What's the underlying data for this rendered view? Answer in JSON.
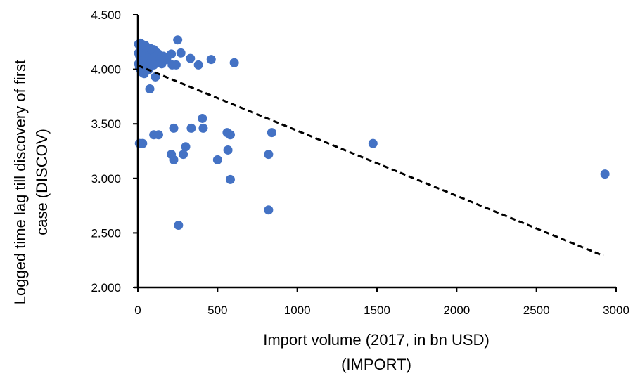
{
  "chart_data": {
    "type": "scatter",
    "title": "",
    "xlabel": [
      "Import volume (2017, in bn USD)",
      "(IMPORT)"
    ],
    "ylabel": [
      "Logged time lag till discovery of first",
      "case (DISCOV)"
    ],
    "xlim": [
      0,
      3000
    ],
    "ylim": [
      2.0,
      4.5
    ],
    "x_ticks": [
      0,
      500,
      1000,
      1500,
      2000,
      2500,
      3000
    ],
    "x_tick_labels": [
      "0",
      "500",
      "1000",
      "1500",
      "2000",
      "2500",
      "3000"
    ],
    "y_ticks": [
      2.0,
      2.5,
      3.0,
      3.5,
      4.0,
      4.5
    ],
    "y_tick_labels": [
      "2.000",
      "2.500",
      "3.000",
      "3.500",
      "4.000",
      "4.500"
    ],
    "grid": false,
    "legend": "none",
    "colors": {
      "points": "#4472C4",
      "trendline": "#000000",
      "axes": "#000000"
    },
    "trendline": {
      "style": "dashed",
      "x": [
        0,
        2920
      ],
      "y": [
        4.035,
        2.29
      ]
    },
    "points": [
      [
        5,
        4.23
      ],
      [
        10,
        4.22
      ],
      [
        15,
        4.24
      ],
      [
        20,
        4.2
      ],
      [
        25,
        4.23
      ],
      [
        30,
        4.22
      ],
      [
        35,
        4.21
      ],
      [
        40,
        4.19
      ],
      [
        45,
        4.22
      ],
      [
        50,
        4.21
      ],
      [
        55,
        4.2
      ],
      [
        60,
        4.17
      ],
      [
        70,
        4.18
      ],
      [
        80,
        4.19
      ],
      [
        90,
        4.17
      ],
      [
        100,
        4.18
      ],
      [
        110,
        4.16
      ],
      [
        120,
        4.15
      ],
      [
        130,
        4.14
      ],
      [
        5,
        4.15
      ],
      [
        10,
        4.13
      ],
      [
        15,
        4.11
      ],
      [
        20,
        4.1
      ],
      [
        25,
        4.12
      ],
      [
        30,
        4.08
      ],
      [
        35,
        4.06
      ],
      [
        40,
        4.05
      ],
      [
        45,
        4.09
      ],
      [
        50,
        4.07
      ],
      [
        55,
        4.11
      ],
      [
        60,
        4.1
      ],
      [
        65,
        4.08
      ],
      [
        75,
        4.05
      ],
      [
        85,
        4.07
      ],
      [
        95,
        4.1
      ],
      [
        105,
        4.05
      ],
      [
        115,
        4.12
      ],
      [
        140,
        4.1
      ],
      [
        150,
        4.05
      ],
      [
        160,
        4.12
      ],
      [
        170,
        4.1
      ],
      [
        180,
        4.09
      ],
      [
        5,
        4.05
      ],
      [
        10,
        4.02
      ],
      [
        15,
        4.0
      ],
      [
        20,
        4.03
      ],
      [
        25,
        3.99
      ],
      [
        30,
        3.97
      ],
      [
        40,
        3.96
      ],
      [
        50,
        4.01
      ],
      [
        60,
        4.03
      ],
      [
        70,
        4.0
      ],
      [
        80,
        4.04
      ],
      [
        100,
        4.04
      ],
      [
        110,
        3.93
      ],
      [
        75,
        3.82
      ],
      [
        210,
        4.14
      ],
      [
        215,
        4.04
      ],
      [
        240,
        4.04
      ],
      [
        250,
        4.27
      ],
      [
        270,
        4.15
      ],
      [
        330,
        4.1
      ],
      [
        380,
        4.04
      ],
      [
        460,
        4.09
      ],
      [
        605,
        4.06
      ],
      [
        405,
        3.55
      ],
      [
        410,
        3.46
      ],
      [
        225,
        3.46
      ],
      [
        335,
        3.46
      ],
      [
        560,
        3.42
      ],
      [
        580,
        3.4
      ],
      [
        840,
        3.42
      ],
      [
        100,
        3.4
      ],
      [
        130,
        3.4
      ],
      [
        10,
        3.32
      ],
      [
        30,
        3.32
      ],
      [
        1475,
        3.32
      ],
      [
        300,
        3.29
      ],
      [
        210,
        3.22
      ],
      [
        285,
        3.22
      ],
      [
        565,
        3.26
      ],
      [
        820,
        3.22
      ],
      [
        225,
        3.17
      ],
      [
        500,
        3.17
      ],
      [
        580,
        2.99
      ],
      [
        2930,
        3.04
      ],
      [
        820,
        2.71
      ],
      [
        255,
        2.57
      ]
    ]
  }
}
